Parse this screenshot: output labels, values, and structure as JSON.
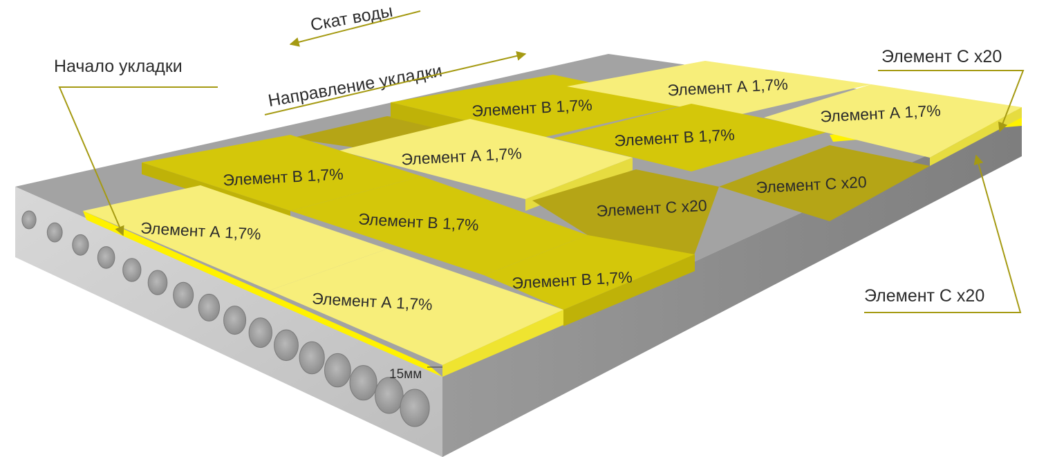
{
  "annotations": {
    "water_slope": "Скат воды",
    "laying_direction": "Направление укладки",
    "laying_start": "Начало укладки",
    "element_c_top": "Элемент С х20",
    "element_c_side": "Элемент С х20",
    "thickness": "15мм"
  },
  "tiles": {
    "front_a1": "Элемент А 1,7%",
    "front_a2": "Элемент А 1,7%",
    "b_mid_left": "Элемент В 1,7%",
    "b_center": "Элемент В 1,7%",
    "b_front_right": "Элемент В 1,7%",
    "a_center": "Элемент А 1,7%",
    "c_center": "Элемент С х20",
    "b_back": "Элемент В 1,7%",
    "b_back_right": "Элемент В 1,7%",
    "a_back_right": "Элемент А 1,7%",
    "a_far_right": "Элемент А 1,7%",
    "c_back_right": "Элемент С х20"
  },
  "colors": {
    "element_a": "#f7ee7a",
    "element_b": "#d4c70a",
    "element_c": "#b5a516",
    "edge_yellow": "#fff200",
    "slab_top": "#9b9b9b",
    "slab_front": "#cfcfcf",
    "slab_side": "#8e8e8e",
    "arrow": "#a59a12"
  }
}
